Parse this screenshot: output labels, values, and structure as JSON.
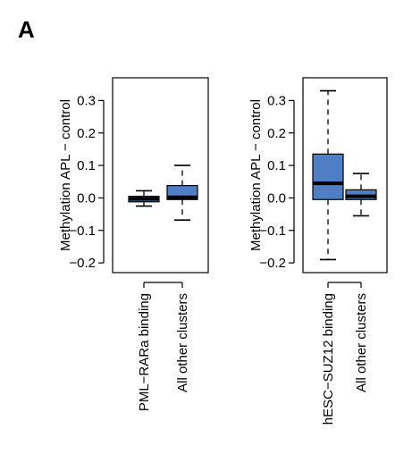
{
  "panel_label": "A",
  "chart_data": [
    {
      "type": "box",
      "title": "",
      "ylabel": "Methylation APL − control",
      "ylim": [
        -0.23,
        0.37
      ],
      "yticks": [
        -0.2,
        -0.1,
        0.0,
        0.1,
        0.2,
        0.3
      ],
      "ytick_labels": [
        "−0.2",
        "−0.1",
        "0.0",
        "0.1",
        "0.2",
        "0.3"
      ],
      "categories": [
        "PML−RARa binding",
        "All other clusters"
      ],
      "box_color": "#4f7ec4",
      "boxes": [
        {
          "whisker_low": -0.025,
          "q1": -0.012,
          "median": -0.003,
          "q3": 0.005,
          "whisker_high": 0.022
        },
        {
          "whisker_low": -0.068,
          "q1": -0.005,
          "median": 0.002,
          "q3": 0.038,
          "whisker_high": 0.1
        }
      ]
    },
    {
      "type": "box",
      "title": "",
      "ylabel": "Methylation APL − control",
      "ylim": [
        -0.23,
        0.37
      ],
      "yticks": [
        -0.2,
        -0.1,
        0.0,
        0.1,
        0.2,
        0.3
      ],
      "ytick_labels": [
        "−0.2",
        "−0.1",
        "0.0",
        "0.1",
        "0.2",
        "0.3"
      ],
      "categories": [
        "hESC−SUZ12 binding",
        "All other clusters"
      ],
      "box_color": "#4f7ec4",
      "boxes": [
        {
          "whisker_low": -0.19,
          "q1": -0.005,
          "median": 0.045,
          "q3": 0.135,
          "whisker_high": 0.33
        },
        {
          "whisker_low": -0.055,
          "q1": -0.005,
          "median": 0.005,
          "q3": 0.025,
          "whisker_high": 0.075
        }
      ]
    }
  ]
}
